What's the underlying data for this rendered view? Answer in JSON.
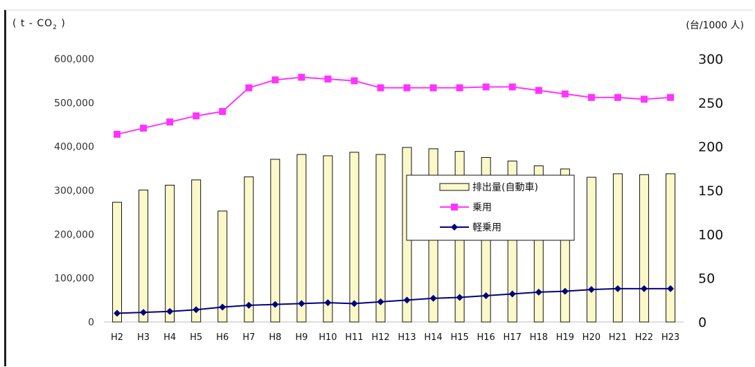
{
  "units": {
    "left_prefix": "( t - CO",
    "left_sub": "2",
    "left_suffix": " )",
    "right": "(台/1000 人)"
  },
  "chart_data": {
    "type": "bar",
    "categories": [
      "H2",
      "H3",
      "H4",
      "H5",
      "H6",
      "H7",
      "H8",
      "H9",
      "H10",
      "H11",
      "H12",
      "H13",
      "H14",
      "H15",
      "H16",
      "H17",
      "H18",
      "H19",
      "H20",
      "H21",
      "H22",
      "H23"
    ],
    "left_axis": {
      "ylim": [
        0,
        600000
      ],
      "ticks": [
        "0",
        "100,000",
        "200,000",
        "300,000",
        "400,000",
        "500,000",
        "600,000"
      ]
    },
    "right_axis": {
      "ylim": [
        0,
        300
      ],
      "ticks": [
        "0",
        "50",
        "100",
        "150",
        "200",
        "250",
        "300"
      ]
    },
    "series": [
      {
        "name": "排出量(自動車)",
        "kind": "bar",
        "axis": "left",
        "color": "#fbf8c9",
        "values": [
          273000,
          301000,
          312000,
          324000,
          253000,
          331000,
          371000,
          382000,
          379000,
          387000,
          382000,
          398000,
          395000,
          389000,
          375000,
          367000,
          356000,
          349000,
          330000,
          338000,
          336000,
          338000
        ]
      },
      {
        "name": "乗用",
        "kind": "line",
        "axis": "right",
        "color": "#ff33ff",
        "marker": "square",
        "values": [
          214,
          221,
          228,
          235,
          240,
          267,
          276,
          279,
          277,
          275,
          267,
          267,
          267,
          267,
          268,
          268,
          264,
          260,
          256,
          256,
          254,
          256
        ]
      },
      {
        "name": "軽乗用",
        "kind": "line",
        "axis": "right",
        "color": "#000080",
        "marker": "diamond",
        "values": [
          10,
          11,
          12,
          14,
          17,
          19,
          20,
          21,
          22,
          21,
          23,
          25,
          27,
          28,
          30,
          32,
          34,
          35,
          37,
          38,
          38,
          38
        ]
      }
    ],
    "legend_position": "right-center",
    "grid": false
  }
}
